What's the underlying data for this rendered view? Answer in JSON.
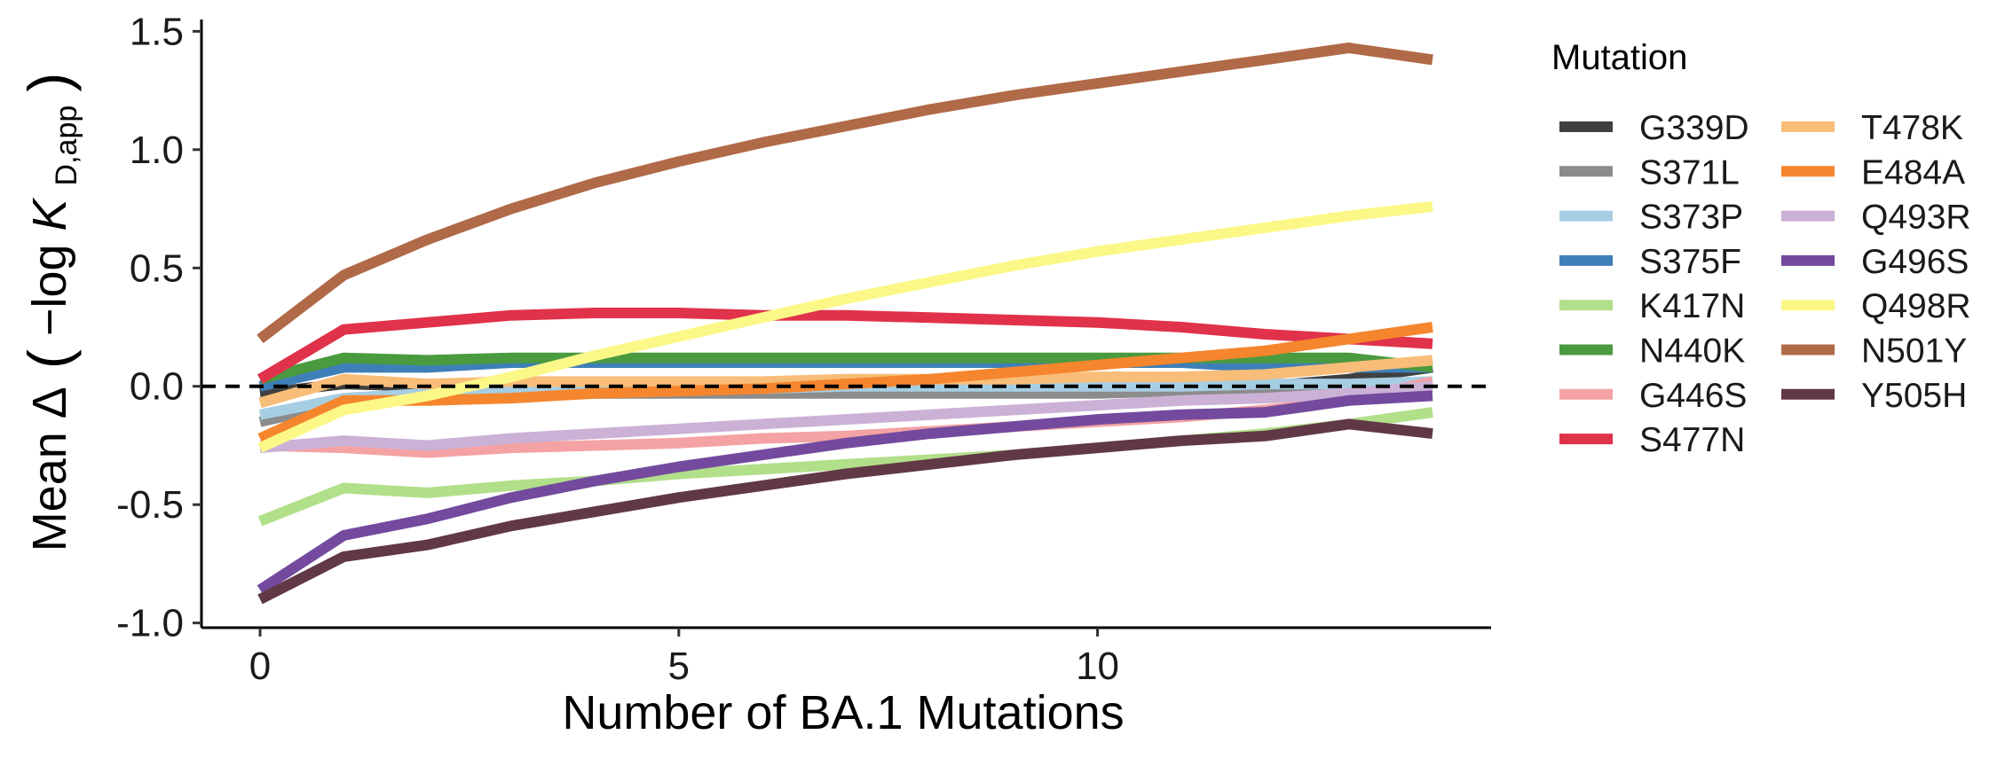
{
  "chart_data": {
    "type": "line",
    "xlabel": "Number of BA.1 Mutations",
    "ylabel": {
      "prefix": "Mean Δ",
      "open": "(",
      "expr": "−log ",
      "k": "K",
      "sub": "D,app",
      "close": ")"
    },
    "xlim": [
      -0.7,
      14.7
    ],
    "ylim": [
      -1.02,
      1.55
    ],
    "xticks": [
      0,
      5,
      10
    ],
    "xtick_labels": [
      "0",
      "5",
      "10"
    ],
    "yticks": [
      -1.0,
      -0.5,
      0.0,
      0.5,
      1.0,
      1.5
    ],
    "ytick_labels": [
      "-1.0",
      "-0.5",
      "0.0",
      "0.5",
      "1.0",
      "1.5"
    ],
    "reference_line": {
      "y": 0,
      "style": "dashed"
    },
    "grid": false,
    "legend": {
      "title": "Mutation",
      "position": "right",
      "columns": 2
    },
    "x": [
      0,
      1,
      2,
      3,
      4,
      5,
      6,
      7,
      8,
      9,
      10,
      11,
      12,
      13,
      14
    ],
    "series": [
      {
        "name": "G339D",
        "color": "#404040",
        "values": [
          -0.03,
          0.01,
          0.0,
          -0.01,
          -0.01,
          -0.01,
          -0.01,
          -0.01,
          -0.01,
          -0.01,
          -0.01,
          -0.01,
          0.0,
          0.03,
          0.08
        ]
      },
      {
        "name": "S371L",
        "color": "#8c8c8c",
        "values": [
          -0.15,
          -0.07,
          -0.04,
          -0.03,
          -0.03,
          -0.03,
          -0.03,
          -0.03,
          -0.03,
          -0.03,
          -0.03,
          -0.02,
          -0.02,
          -0.01,
          0.0
        ]
      },
      {
        "name": "S373P",
        "color": "#a6cee3",
        "values": [
          -0.12,
          -0.05,
          -0.03,
          -0.02,
          -0.01,
          -0.01,
          -0.01,
          0.0,
          0.0,
          0.0,
          0.0,
          0.0,
          0.01,
          0.01,
          0.02
        ]
      },
      {
        "name": "S375F",
        "color": "#3f7fb8",
        "values": [
          0.0,
          0.08,
          0.08,
          0.1,
          0.1,
          0.1,
          0.1,
          0.1,
          0.1,
          0.1,
          0.1,
          0.1,
          0.08,
          0.08,
          0.08
        ]
      },
      {
        "name": "K417N",
        "color": "#b2df8a",
        "values": [
          -0.57,
          -0.43,
          -0.45,
          -0.42,
          -0.4,
          -0.37,
          -0.35,
          -0.33,
          -0.31,
          -0.29,
          -0.26,
          -0.23,
          -0.2,
          -0.16,
          -0.11
        ]
      },
      {
        "name": "N440K",
        "color": "#4a9a3f",
        "values": [
          0.03,
          0.12,
          0.11,
          0.12,
          0.12,
          0.12,
          0.12,
          0.12,
          0.12,
          0.12,
          0.12,
          0.12,
          0.12,
          0.12,
          0.08
        ]
      },
      {
        "name": "G446S",
        "color": "#f4a2a3",
        "values": [
          -0.25,
          -0.26,
          -0.28,
          -0.26,
          -0.25,
          -0.24,
          -0.22,
          -0.21,
          -0.19,
          -0.17,
          -0.15,
          -0.13,
          -0.1,
          -0.06,
          0.02
        ]
      },
      {
        "name": "S477N",
        "color": "#e0324a",
        "values": [
          0.03,
          0.24,
          0.27,
          0.3,
          0.31,
          0.31,
          0.3,
          0.3,
          0.29,
          0.28,
          0.27,
          0.25,
          0.22,
          0.2,
          0.18
        ]
      },
      {
        "name": "T478K",
        "color": "#f8bd78",
        "values": [
          -0.07,
          0.03,
          0.01,
          0.02,
          0.02,
          0.02,
          0.02,
          0.03,
          0.03,
          0.03,
          0.04,
          0.04,
          0.05,
          0.08,
          0.11
        ]
      },
      {
        "name": "E484A",
        "color": "#f5862e",
        "values": [
          -0.22,
          -0.06,
          -0.06,
          -0.05,
          -0.03,
          -0.02,
          -0.01,
          0.01,
          0.03,
          0.06,
          0.09,
          0.12,
          0.15,
          0.2,
          0.25
        ]
      },
      {
        "name": "Q493R",
        "color": "#cbb1d6",
        "values": [
          -0.26,
          -0.23,
          -0.25,
          -0.22,
          -0.2,
          -0.18,
          -0.16,
          -0.14,
          -0.12,
          -0.1,
          -0.08,
          -0.06,
          -0.05,
          -0.03,
          0.0
        ]
      },
      {
        "name": "G496S",
        "color": "#734a9e",
        "values": [
          -0.86,
          -0.63,
          -0.56,
          -0.47,
          -0.4,
          -0.34,
          -0.29,
          -0.24,
          -0.2,
          -0.17,
          -0.14,
          -0.12,
          -0.11,
          -0.06,
          -0.04
        ]
      },
      {
        "name": "Q498R",
        "color": "#fbf888",
        "values": [
          -0.26,
          -0.1,
          -0.04,
          0.04,
          0.13,
          0.21,
          0.29,
          0.37,
          0.44,
          0.51,
          0.57,
          0.62,
          0.67,
          0.72,
          0.76
        ]
      },
      {
        "name": "N501Y",
        "color": "#b06a48",
        "values": [
          0.2,
          0.47,
          0.62,
          0.75,
          0.86,
          0.95,
          1.03,
          1.1,
          1.17,
          1.23,
          1.28,
          1.33,
          1.38,
          1.43,
          1.38
        ]
      },
      {
        "name": "Y505H",
        "color": "#613846",
        "values": [
          -0.9,
          -0.72,
          -0.67,
          -0.59,
          -0.53,
          -0.47,
          -0.42,
          -0.37,
          -0.33,
          -0.29,
          -0.26,
          -0.23,
          -0.21,
          -0.16,
          -0.2
        ]
      }
    ]
  }
}
